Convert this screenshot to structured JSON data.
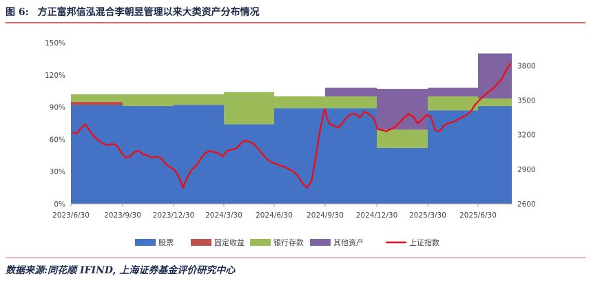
{
  "header": {
    "figure_label": "图 6:",
    "title": "方正富邦信泓混合李朝昱管理以来大类资产分布情况"
  },
  "source": "数据来源:同花顺 IFIND, 上海证券基金评价研究中心",
  "colors": {
    "stock": "#4472c4",
    "bond": "#c0504d",
    "bank": "#9bbb59",
    "other": "#8064a2",
    "index": "#e8101a",
    "rule": "#d96666"
  },
  "chart_data": {
    "type": "area",
    "title": "",
    "x_tick_labels": [
      "2023/6/30",
      "2023/9/30",
      "2023/12/30",
      "2024/3/30",
      "2024/6/30",
      "2024/9/30",
      "2024/12/30",
      "2025/3/30",
      "2025/6/30"
    ],
    "y_left": {
      "ticks": [
        "0%",
        "30%",
        "60%",
        "90%",
        "120%",
        "150%"
      ],
      "range": [
        0,
        150
      ]
    },
    "y_right": {
      "ticks": [
        "2600",
        "2900",
        "3200",
        "3500",
        "3800"
      ],
      "range": [
        2600,
        4000
      ]
    },
    "quarters": [
      "2023Q2",
      "2023Q3",
      "2023Q4",
      "2024Q1",
      "2024Q2",
      "2024Q3",
      "2024Q4",
      "2025Q1",
      "2025Q2",
      "2025Q3"
    ],
    "series": [
      {
        "name": "股票",
        "values": [
          92,
          91,
          92,
          74,
          89,
          89,
          52,
          87,
          91,
          91
        ]
      },
      {
        "name": "固定收益",
        "values": [
          3,
          0,
          0,
          0,
          0,
          0,
          0,
          0,
          0,
          0
        ]
      },
      {
        "name": "银行存款",
        "values": [
          7,
          11,
          10,
          30,
          11,
          11,
          17,
          13,
          7,
          7
        ]
      },
      {
        "name": "其他资产",
        "values": [
          0,
          0,
          0,
          0,
          0,
          8,
          38,
          8,
          42,
          42
        ]
      }
    ],
    "index_series": {
      "name": "上证指数",
      "points": [
        [
          0,
          3220
        ],
        [
          1,
          3210
        ],
        [
          2,
          3260
        ],
        [
          3,
          3290
        ],
        [
          4,
          3230
        ],
        [
          5,
          3180
        ],
        [
          6,
          3150
        ],
        [
          7,
          3120
        ],
        [
          8,
          3110
        ],
        [
          9,
          3120
        ],
        [
          10,
          3110
        ],
        [
          11,
          3050
        ],
        [
          12,
          3000
        ],
        [
          13,
          3010
        ],
        [
          14,
          3050
        ],
        [
          15,
          3060
        ],
        [
          16,
          3030
        ],
        [
          17,
          3020
        ],
        [
          18,
          3000
        ],
        [
          19,
          3010
        ],
        [
          20,
          3000
        ],
        [
          21,
          2950
        ],
        [
          22,
          2920
        ],
        [
          23,
          2900
        ],
        [
          24,
          2840
        ],
        [
          25,
          2740
        ],
        [
          26,
          2830
        ],
        [
          27,
          2900
        ],
        [
          28,
          2930
        ],
        [
          29,
          2990
        ],
        [
          30,
          3040
        ],
        [
          31,
          3060
        ],
        [
          32,
          3050
        ],
        [
          33,
          3040
        ],
        [
          34,
          3010
        ],
        [
          35,
          3060
        ],
        [
          36,
          3070
        ],
        [
          37,
          3080
        ],
        [
          38,
          3120
        ],
        [
          39,
          3150
        ],
        [
          40,
          3140
        ],
        [
          41,
          3120
        ],
        [
          42,
          3080
        ],
        [
          43,
          3030
        ],
        [
          44,
          2990
        ],
        [
          45,
          2960
        ],
        [
          46,
          2950
        ],
        [
          47,
          2930
        ],
        [
          48,
          2920
        ],
        [
          49,
          2900
        ],
        [
          50,
          2880
        ],
        [
          51,
          2840
        ],
        [
          52,
          2780
        ],
        [
          53,
          2740
        ],
        [
          54,
          2790
        ],
        [
          55,
          3000
        ],
        [
          56,
          3250
        ],
        [
          57,
          3420
        ],
        [
          58,
          3300
        ],
        [
          59,
          3280
        ],
        [
          60,
          3260
        ],
        [
          61,
          3300
        ],
        [
          62,
          3350
        ],
        [
          63,
          3380
        ],
        [
          64,
          3380
        ],
        [
          65,
          3350
        ],
        [
          66,
          3400
        ],
        [
          67,
          3380
        ],
        [
          68,
          3350
        ],
        [
          69,
          3250
        ],
        [
          70,
          3240
        ],
        [
          71,
          3230
        ],
        [
          72,
          3250
        ],
        [
          73,
          3270
        ],
        [
          74,
          3310
        ],
        [
          75,
          3350
        ],
        [
          76,
          3380
        ],
        [
          77,
          3360
        ],
        [
          78,
          3300
        ],
        [
          79,
          3330
        ],
        [
          80,
          3370
        ],
        [
          81,
          3360
        ],
        [
          82,
          3240
        ],
        [
          83,
          3230
        ],
        [
          84,
          3280
        ],
        [
          85,
          3300
        ],
        [
          86,
          3310
        ],
        [
          87,
          3330
        ],
        [
          88,
          3350
        ],
        [
          89,
          3370
        ],
        [
          90,
          3400
        ],
        [
          91,
          3460
        ],
        [
          92,
          3500
        ],
        [
          93,
          3540
        ],
        [
          94,
          3570
        ],
        [
          95,
          3600
        ],
        [
          96,
          3640
        ],
        [
          97,
          3680
        ],
        [
          98,
          3760
        ],
        [
          99,
          3820
        ]
      ]
    },
    "legend_position": "bottom",
    "grid": false
  }
}
